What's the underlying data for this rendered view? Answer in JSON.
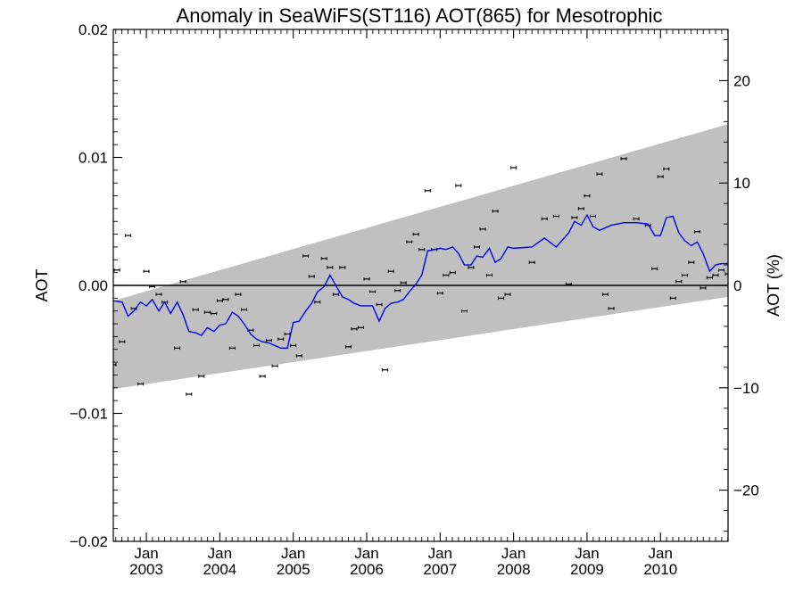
{
  "chart_data": {
    "type": "scatter",
    "title": "Anomaly in SeaWiFS(ST116) AOT(865) for Mesotrophic",
    "ylabel": "AOT",
    "y2label": "AOT (%)",
    "xlim": [
      2002.55,
      2010.92
    ],
    "ylim": [
      -0.02,
      0.02
    ],
    "y2lim": [
      -25,
      25
    ],
    "y_ticks": [
      "0.02",
      "0.01",
      "0.00",
      "−0.01",
      "−0.02"
    ],
    "y_tick_values": [
      0.02,
      0.01,
      0.0,
      -0.01,
      -0.02
    ],
    "y2_ticks": [
      "20",
      "10",
      "0",
      "−10",
      "−20"
    ],
    "y2_tick_values": [
      20,
      10,
      0,
      -10,
      -20
    ],
    "x_ticks": [
      {
        "month": "Jan",
        "year": "2003",
        "value": 2003.0
      },
      {
        "month": "Jan",
        "year": "2004",
        "value": 2004.0
      },
      {
        "month": "Jan",
        "year": "2005",
        "value": 2005.0
      },
      {
        "month": "Jan",
        "year": "2006",
        "value": 2006.0
      },
      {
        "month": "Jan",
        "year": "2007",
        "value": 2007.0
      },
      {
        "month": "Jan",
        "year": "2008",
        "value": 2008.0
      },
      {
        "month": "Jan",
        "year": "2009",
        "value": 2009.0
      },
      {
        "month": "Jan",
        "year": "2010",
        "value": 2010.0
      }
    ],
    "colors": {
      "line": "#0000ee",
      "band": "#c0c0c0",
      "points": "#000000"
    },
    "band": {
      "x": [
        2002.55,
        2010.92
      ],
      "upper": [
        -0.0012,
        0.0126
      ],
      "lower": [
        -0.0081,
        -0.0009
      ]
    },
    "line": {
      "x": [
        2002.55,
        2002.67,
        2002.75,
        2002.83,
        2002.92,
        2003.0,
        2003.08,
        2003.17,
        2003.25,
        2003.33,
        2003.42,
        2003.5,
        2003.58,
        2003.67,
        2003.75,
        2003.83,
        2003.92,
        2004.0,
        2004.08,
        2004.17,
        2004.25,
        2004.33,
        2004.42,
        2004.5,
        2004.58,
        2004.67,
        2004.75,
        2004.83,
        2004.92,
        2005.0,
        2005.08,
        2005.17,
        2005.25,
        2005.33,
        2005.42,
        2005.5,
        2005.58,
        2005.67,
        2005.75,
        2005.83,
        2005.92,
        2006.0,
        2006.08,
        2006.17,
        2006.25,
        2006.33,
        2006.42,
        2006.5,
        2006.58,
        2006.67,
        2006.75,
        2006.83,
        2006.92,
        2007.0,
        2007.08,
        2007.17,
        2007.25,
        2007.33,
        2007.42,
        2007.5,
        2007.58,
        2007.67,
        2007.75,
        2007.83,
        2007.92,
        2008.0,
        2008.25,
        2008.42,
        2008.58,
        2008.75,
        2008.83,
        2008.92,
        2009.0,
        2009.08,
        2009.17,
        2009.25,
        2009.33,
        2009.5,
        2009.67,
        2009.83,
        2009.92,
        2010.0,
        2010.08,
        2010.17,
        2010.25,
        2010.33,
        2010.42,
        2010.5,
        2010.58,
        2010.67,
        2010.75,
        2010.83,
        2010.92
      ],
      "y": [
        -0.0012,
        -0.0013,
        -0.0024,
        -0.002,
        -0.0013,
        -0.0016,
        -0.0011,
        -0.002,
        -0.0013,
        -0.0022,
        -0.0013,
        -0.0023,
        -0.0036,
        -0.0037,
        -0.0039,
        -0.0033,
        -0.0036,
        -0.0031,
        -0.003,
        -0.0021,
        -0.0024,
        -0.003,
        -0.0038,
        -0.0042,
        -0.0044,
        -0.0045,
        -0.0047,
        -0.0049,
        -0.0049,
        -0.0029,
        -0.0028,
        -0.002,
        -0.0014,
        -0.0005,
        -0.0001,
        0.0008,
        0.0,
        -0.0009,
        -0.0011,
        -0.0014,
        -0.0016,
        -0.0016,
        -0.0016,
        -0.0028,
        -0.0018,
        -0.0014,
        -0.0013,
        -0.0011,
        -0.0005,
        0.0001,
        0.0008,
        0.0027,
        0.0028,
        0.0029,
        0.0028,
        0.003,
        0.0025,
        0.0016,
        0.0016,
        0.0023,
        0.0022,
        0.0029,
        0.0018,
        0.0021,
        0.003,
        0.0029,
        0.003,
        0.0037,
        0.003,
        0.0041,
        0.005,
        0.0047,
        0.0055,
        0.0046,
        0.0043,
        0.0045,
        0.0047,
        0.0049,
        0.0049,
        0.0048,
        0.0039,
        0.0039,
        0.0053,
        0.0054,
        0.0041,
        0.0035,
        0.0031,
        0.0034,
        0.0025,
        0.0011,
        0.0016,
        0.0017,
        0.0017
      ]
    },
    "points": {
      "x": [
        2002.55,
        2002.6,
        2002.67,
        2002.75,
        2002.83,
        2002.92,
        2003.0,
        2003.08,
        2003.17,
        2003.25,
        2003.42,
        2003.5,
        2003.58,
        2003.67,
        2003.75,
        2003.83,
        2003.92,
        2004.0,
        2004.08,
        2004.17,
        2004.25,
        2004.33,
        2004.42,
        2004.5,
        2004.58,
        2004.67,
        2004.75,
        2004.83,
        2004.92,
        2005.0,
        2005.08,
        2005.17,
        2005.25,
        2005.33,
        2005.42,
        2005.5,
        2005.58,
        2005.67,
        2005.75,
        2005.83,
        2005.92,
        2006.0,
        2006.08,
        2006.17,
        2006.25,
        2006.33,
        2006.42,
        2006.5,
        2006.58,
        2006.67,
        2006.75,
        2006.83,
        2006.92,
        2007.0,
        2007.08,
        2007.17,
        2007.25,
        2007.33,
        2007.42,
        2007.5,
        2007.58,
        2007.67,
        2007.75,
        2007.83,
        2007.92,
        2008.0,
        2008.25,
        2008.42,
        2008.58,
        2008.75,
        2008.83,
        2008.92,
        2009.0,
        2009.08,
        2009.17,
        2009.25,
        2009.33,
        2009.5,
        2009.67,
        2009.83,
        2009.92,
        2010.0,
        2010.08,
        2010.17,
        2010.25,
        2010.33,
        2010.42,
        2010.5,
        2010.58,
        2010.67,
        2010.75,
        2010.83,
        2010.92
      ],
      "y": [
        -0.0062,
        0.0012,
        -0.0044,
        0.0039,
        -0.0018,
        -0.0077,
        0.0011,
        -0.0001,
        -0.0007,
        -0.0013,
        -0.0049,
        0.0003,
        -0.0085,
        -0.0019,
        -0.0071,
        -0.0021,
        -0.0022,
        -0.0012,
        -0.0011,
        -0.0049,
        -0.0007,
        -0.0019,
        -0.0035,
        -0.0047,
        -0.0071,
        -0.0043,
        -0.0063,
        -0.0042,
        -0.0038,
        -0.0047,
        -0.0055,
        0.0023,
        0.0007,
        -0.0013,
        0.0021,
        0.0014,
        -0.0007,
        0.0014,
        -0.0048,
        -0.0034,
        -0.0033,
        0.0005,
        -0.0005,
        -0.0015,
        -0.0066,
        0.0011,
        -0.0004,
        0.0002,
        0.0034,
        0.004,
        0.0028,
        0.0074,
        0.0028,
        -0.0006,
        0.0008,
        0.001,
        0.0078,
        -0.002,
        0.0014,
        0.003,
        0.0044,
        0.0008,
        0.0058,
        -0.001,
        -0.0007,
        0.0092,
        0.0018,
        0.0052,
        0.0054,
        0.0001,
        0.0053,
        0.006,
        0.007,
        0.0054,
        0.0087,
        -0.0007,
        -0.0018,
        0.0099,
        0.0052,
        0.0047,
        0.0013,
        0.0085,
        0.0091,
        -0.001,
        0.0003,
        0.0008,
        0.0018,
        0.0042,
        -0.0002,
        0.0006,
        0.0008,
        0.0012,
        0.0009
      ]
    }
  }
}
